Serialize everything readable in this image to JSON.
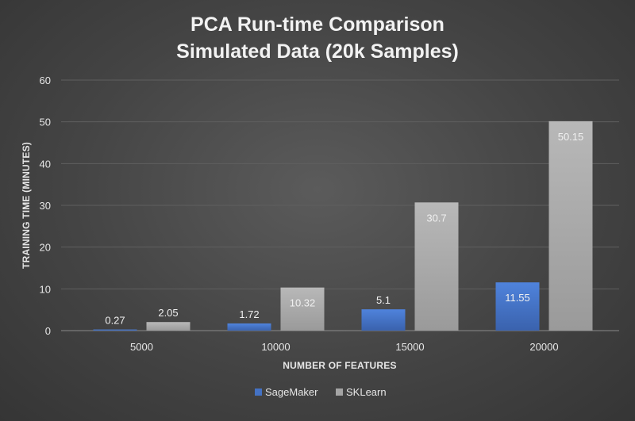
{
  "chart_data": {
    "type": "bar",
    "title": [
      "PCA Run-time Comparison",
      "Simulated Data (20k Samples)"
    ],
    "xlabel": "NUMBER OF FEATURES",
    "ylabel": "TRAINING TIME (MINUTES)",
    "categories": [
      "5000",
      "10000",
      "15000",
      "20000"
    ],
    "ylim": [
      0,
      60
    ],
    "yticks": [
      0,
      10,
      20,
      30,
      40,
      50,
      60
    ],
    "grid": true,
    "legend_position": "bottom",
    "series": [
      {
        "name": "SageMaker",
        "values": [
          0.27,
          1.72,
          5.1,
          11.55
        ],
        "labels": [
          "0.27",
          "1.72",
          "5.1",
          "11.55"
        ],
        "color": "#4472c4"
      },
      {
        "name": "SKLearn",
        "values": [
          2.05,
          10.32,
          30.7,
          50.15
        ],
        "labels": [
          "2.05",
          "10.32",
          "30.7",
          "50.15"
        ],
        "color": "#a5a5a5"
      }
    ]
  }
}
